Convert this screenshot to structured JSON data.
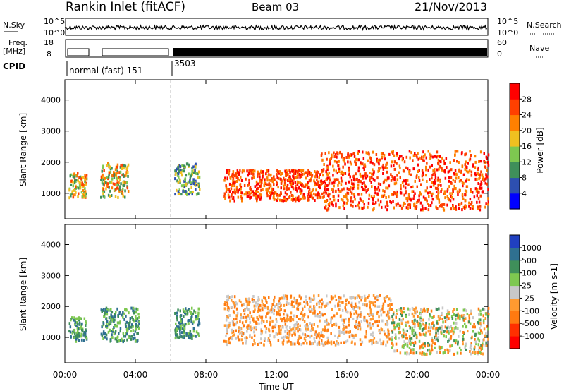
{
  "header": {
    "title": "Rankin Inlet (fitACF)",
    "beam": "Beam 03",
    "date": "21/Nov/2013"
  },
  "status_panel": {
    "nsky_label": "N.Sky",
    "nsky_ticks": [
      "10^5",
      "10^0"
    ],
    "nsearch_label": "N.Search",
    "nsearch_ticks": [
      "10^5",
      "10^0"
    ],
    "freq_label": "Freq.",
    "freq_unit": "[MHz]",
    "freq_ticks": [
      "18",
      "8"
    ],
    "nave_label": "Nave",
    "nave_ticks": [
      "60",
      "0"
    ],
    "cpid_label": "CPID",
    "cpid_segments": [
      {
        "label": "normal (fast) 151",
        "start_hour": 0,
        "end_hour": 6
      },
      {
        "label": "3503",
        "start_hour": 6,
        "end_hour": 24
      }
    ]
  },
  "chart_data": [
    {
      "type": "heatmap",
      "panel": "power",
      "xlabel": "",
      "ylabel": "Slant Range [km]",
      "xlim": [
        0,
        24
      ],
      "ylim": [
        180,
        4650
      ],
      "yticks": [
        "1000",
        "2000",
        "3000",
        "4000"
      ],
      "colorbar_label": "Power [dB]",
      "colorbar_ticks": [
        "4",
        "8",
        "12",
        "16",
        "20",
        "24",
        "28"
      ],
      "colorbar_colors": [
        "#0000ff",
        "#2d4fb0",
        "#3f8f5a",
        "#7ec850",
        "#f0c020",
        "#ff8000",
        "#ff4000",
        "#ff0000"
      ],
      "scatter_regions": [
        {
          "t0": 0.2,
          "t1": 1.2,
          "r0": 900,
          "r1": 1700,
          "level": "mid"
        },
        {
          "t0": 2.0,
          "t1": 3.6,
          "r0": 900,
          "r1": 2000,
          "level": "mid"
        },
        {
          "t0": 6.2,
          "t1": 7.6,
          "r0": 1000,
          "r1": 2000,
          "level": "low"
        },
        {
          "t0": 9.0,
          "t1": 14.5,
          "r0": 800,
          "r1": 1800,
          "level": "high"
        },
        {
          "t0": 14.5,
          "t1": 24.0,
          "r0": 500,
          "r1": 2400,
          "level": "high"
        }
      ]
    },
    {
      "type": "heatmap",
      "panel": "velocity",
      "xlabel": "Time UT",
      "ylabel": "Slant Range [km]",
      "xlim": [
        0,
        24
      ],
      "ylim": [
        180,
        4650
      ],
      "xticks": [
        "00:00",
        "04:00",
        "08:00",
        "12:00",
        "16:00",
        "20:00",
        "00:00"
      ],
      "yticks": [
        "1000",
        "2000",
        "3000",
        "4000"
      ],
      "colorbar_label": "Velocity [m s-1]",
      "colorbar_ticks": [
        "1000",
        "500",
        "100",
        "25",
        "-25",
        "-100",
        "-500",
        "-1000"
      ],
      "colorbar_colors": [
        "#2040c0",
        "#2f7090",
        "#3f8f5a",
        "#7ec850",
        "#c8c8c8",
        "#ff9a30",
        "#ff7a10",
        "#ff3000",
        "#ff0000"
      ],
      "scatter_regions": [
        {
          "t0": 0.2,
          "t1": 1.2,
          "r0": 900,
          "r1": 1700,
          "level": "positive"
        },
        {
          "t0": 2.0,
          "t1": 4.2,
          "r0": 900,
          "r1": 2000,
          "level": "positive"
        },
        {
          "t0": 6.2,
          "t1": 7.6,
          "r0": 1000,
          "r1": 2000,
          "level": "positive"
        },
        {
          "t0": 9.0,
          "t1": 18.5,
          "r0": 800,
          "r1": 2400,
          "level": "negative"
        },
        {
          "t0": 18.5,
          "t1": 24.0,
          "r0": 500,
          "r1": 2000,
          "level": "mixed"
        }
      ]
    }
  ]
}
